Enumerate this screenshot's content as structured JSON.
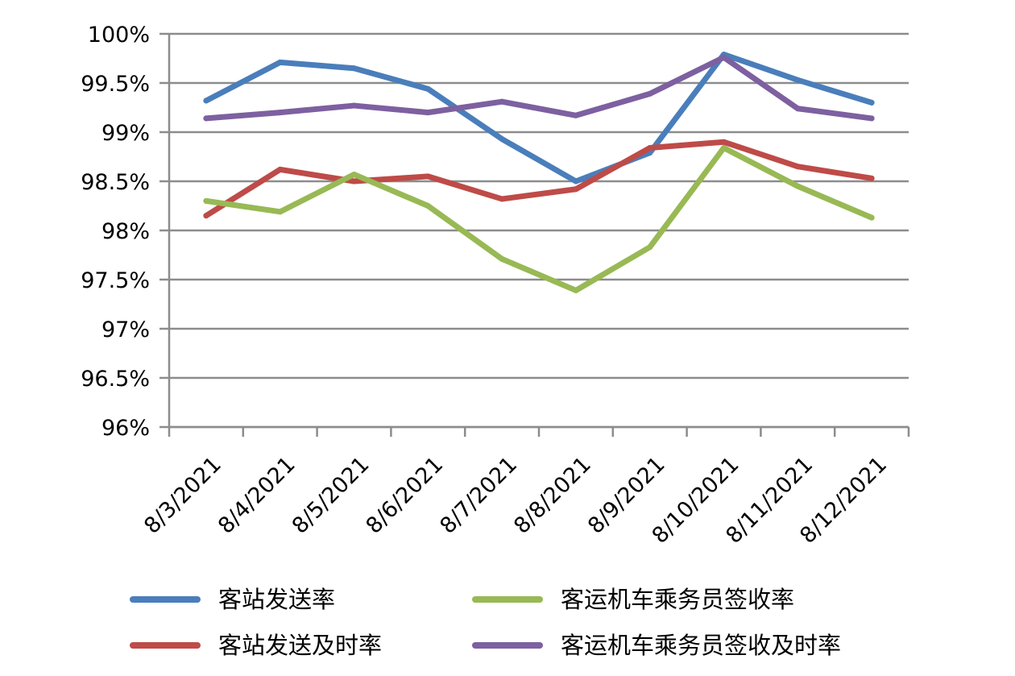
{
  "chart_data": {
    "type": "line",
    "title": "",
    "xlabel": "",
    "ylabel": "",
    "categories": [
      "8/3/2021",
      "8/4/2021",
      "8/5/2021",
      "8/6/2021",
      "8/7/2021",
      "8/8/2021",
      "8/9/2021",
      "8/10/2021",
      "8/11/2021",
      "8/12/2021"
    ],
    "ylim": [
      96,
      100
    ],
    "y_ticks": [
      {
        "value": 100,
        "label": "100%"
      },
      {
        "value": 99.5,
        "label": "99.5%"
      },
      {
        "value": 99,
        "label": "99%"
      },
      {
        "value": 98.5,
        "label": "98.5%"
      },
      {
        "value": 98,
        "label": "98%"
      },
      {
        "value": 97.5,
        "label": "97.5%"
      },
      {
        "value": 97,
        "label": "97%"
      },
      {
        "value": 96.5,
        "label": "96.5%"
      },
      {
        "value": 96,
        "label": "96%"
      }
    ],
    "grid": true,
    "legend_position": "bottom",
    "series": [
      {
        "name": "客站发送率",
        "color": "#4A7EBB",
        "values": [
          99.32,
          99.71,
          99.65,
          99.44,
          98.93,
          98.5,
          98.79,
          99.79,
          99.53,
          99.3
        ]
      },
      {
        "name": "客站发送及时率",
        "color": "#BE4B48",
        "values": [
          98.15,
          98.62,
          98.5,
          98.55,
          98.32,
          98.42,
          98.84,
          98.9,
          98.65,
          98.53
        ]
      },
      {
        "name": "客运机车乘务员签收率",
        "color": "#98B954",
        "values": [
          98.3,
          98.19,
          98.57,
          98.25,
          97.71,
          97.39,
          97.83,
          98.84,
          98.45,
          98.13
        ]
      },
      {
        "name": "客运机车乘务员签收及时率",
        "color": "#7D60A0",
        "values": [
          99.14,
          99.2,
          99.27,
          99.2,
          99.31,
          99.17,
          99.39,
          99.76,
          99.24,
          99.14
        ]
      }
    ]
  }
}
